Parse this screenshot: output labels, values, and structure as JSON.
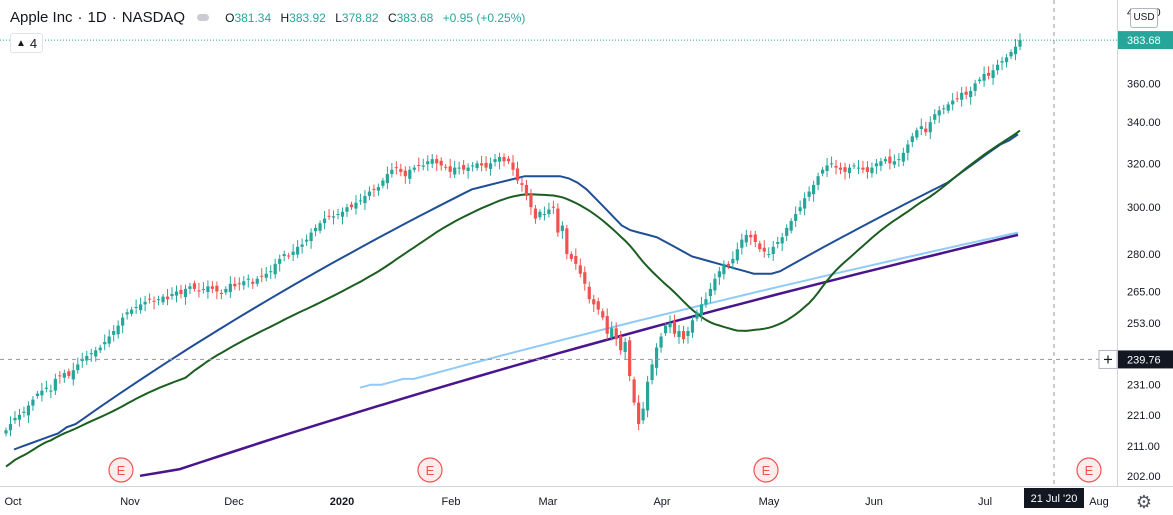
{
  "header": {
    "symbol": "Apple Inc",
    "interval": "1D",
    "exchange": "NASDAQ",
    "open_label": "O",
    "open": "381.34",
    "high_label": "H",
    "high": "383.92",
    "low_label": "L",
    "low": "378.82",
    "close_label": "C",
    "close": "383.68",
    "change": "+0.95 (+0.25%)",
    "indicators_count": "4"
  },
  "currency_label": "USD",
  "colors": {
    "up": "#26a69a",
    "down": "#ef5350",
    "ma_short": "#1e4e96",
    "ma_medium": "#1b5e20",
    "ma_light": "#90caf9",
    "ma_long": "#4a148c",
    "price_badge": "#26a69a",
    "crosshair_badge": "#131722"
  },
  "icons": {
    "settings": "gear-icon",
    "indicators_toggle": "chevron-up-icon",
    "crosshair": "plus-icon"
  },
  "chart_data": {
    "type": "candlestick",
    "title": "Apple Inc · 1D · NASDAQ",
    "y_axis": {
      "scale": "log",
      "ticks": [
        "202.00",
        "211.00",
        "221.00",
        "231.00",
        "239.76",
        "253.00",
        "265.00",
        "280.00",
        "300.00",
        "320.00",
        "340.00",
        "360.00",
        "383.68",
        "400.00"
      ],
      "range": [
        199,
        407
      ]
    },
    "x_axis": {
      "ticks": [
        "Oct",
        "Nov",
        "Dec",
        "2020",
        "Feb",
        "Mar",
        "Apr",
        "May",
        "Jun",
        "Jul",
        "Aug"
      ],
      "bold_ticks": [
        "2020"
      ],
      "crosshair_label": "21 Jul '20"
    },
    "last_price": 383.68,
    "crosshair_price": "239.76",
    "earnings_markers": [
      "E",
      "E",
      "E",
      "E"
    ],
    "closes": [
      216,
      218,
      220,
      221,
      222,
      224,
      226,
      228,
      229,
      230,
      229,
      233,
      234,
      235,
      234,
      236,
      238,
      240,
      241,
      242,
      243,
      244,
      246,
      248,
      250,
      252,
      255,
      257,
      258,
      259,
      260,
      261,
      262,
      261,
      262,
      263,
      262,
      264,
      265,
      264,
      266,
      267,
      266,
      265,
      266,
      267,
      266,
      265,
      264,
      266,
      268,
      267,
      268,
      269,
      270,
      268,
      270,
      271,
      272,
      273,
      276,
      278,
      280,
      279,
      281,
      283,
      284,
      286,
      289,
      291,
      293,
      295,
      296,
      296,
      297,
      298,
      300,
      300,
      302,
      303,
      305,
      307,
      308,
      309,
      312,
      315,
      317,
      318,
      316,
      314,
      317,
      318,
      319,
      319,
      321,
      322,
      320,
      319,
      318,
      316,
      318,
      318,
      317,
      318,
      319,
      320,
      319,
      318,
      320,
      322,
      323,
      321,
      321,
      317,
      312,
      310,
      305,
      300,
      295,
      298,
      297,
      299,
      300,
      289,
      292,
      280,
      278,
      276,
      272,
      268,
      262,
      260,
      258,
      255,
      249,
      251,
      247,
      243,
      246,
      234,
      225,
      218,
      223,
      232,
      238,
      244,
      248,
      252,
      253,
      249,
      250,
      247,
      250,
      254,
      257,
      260,
      262,
      266,
      270,
      273,
      276,
      275,
      278,
      282,
      286,
      288,
      287,
      285,
      282,
      281,
      280,
      283,
      285,
      287,
      291,
      294,
      297,
      300,
      304,
      307,
      310,
      314,
      317,
      319,
      320,
      318,
      317,
      316,
      318,
      319,
      318,
      317,
      316,
      318,
      320,
      321,
      322,
      320,
      321,
      322,
      325,
      329,
      333,
      336,
      338,
      335,
      340,
      344,
      346,
      347,
      349,
      351,
      352,
      355,
      354,
      356,
      360,
      362,
      365,
      364,
      367,
      370,
      372,
      374,
      377,
      380,
      383.68
    ],
    "moving_averages": [
      {
        "values": [
          210,
          211,
          212,
          213,
          214,
          215,
          217,
          218,
          220,
          222,
          224,
          226,
          228,
          230,
          232,
          234,
          236,
          238,
          240,
          242,
          244,
          246,
          248,
          250,
          252,
          254,
          256,
          258,
          260,
          262,
          264,
          266,
          268,
          270,
          272,
          274,
          276,
          278,
          280,
          282,
          284,
          286,
          288,
          290,
          292,
          294,
          296,
          298,
          300,
          302,
          304,
          306,
          308,
          309,
          310,
          311,
          312,
          313,
          314,
          314,
          314,
          314,
          314,
          313,
          311,
          308,
          304,
          300,
          296,
          292,
          290,
          289,
          288,
          287,
          285,
          283,
          281,
          279,
          278,
          277,
          276,
          275,
          274,
          273,
          272,
          272,
          272,
          273,
          275,
          277,
          279,
          281,
          283,
          285,
          287,
          289,
          291,
          293,
          295,
          297,
          299,
          301,
          303,
          305,
          307,
          309,
          311,
          314,
          317,
          320,
          323,
          326,
          329,
          331,
          334
        ]
      },
      {
        "values": [
          230,
          231,
          231,
          232,
          233,
          233,
          234,
          235,
          236,
          237,
          238,
          239,
          240,
          241,
          242,
          243,
          244,
          245,
          246,
          247,
          248,
          249,
          250,
          251,
          252,
          253,
          254,
          255,
          256,
          257,
          258,
          259,
          260,
          261,
          262,
          263,
          264,
          265,
          266,
          267,
          268,
          269,
          270,
          271,
          272,
          273,
          274,
          275,
          276,
          277,
          278,
          279,
          280,
          281,
          282,
          283,
          284,
          285,
          286,
          287,
          288,
          289
        ]
      },
      {
        "values": [
          202,
          203,
          204,
          206,
          208,
          210,
          212,
          214,
          216,
          218,
          220,
          222,
          224,
          226,
          228,
          230,
          232,
          234,
          236,
          238,
          240,
          242,
          244,
          246,
          248,
          250,
          252,
          254,
          256,
          258,
          260,
          262,
          264,
          266,
          268,
          270,
          272,
          274,
          276,
          278,
          280,
          282,
          284,
          286,
          288
        ]
      }
    ]
  }
}
